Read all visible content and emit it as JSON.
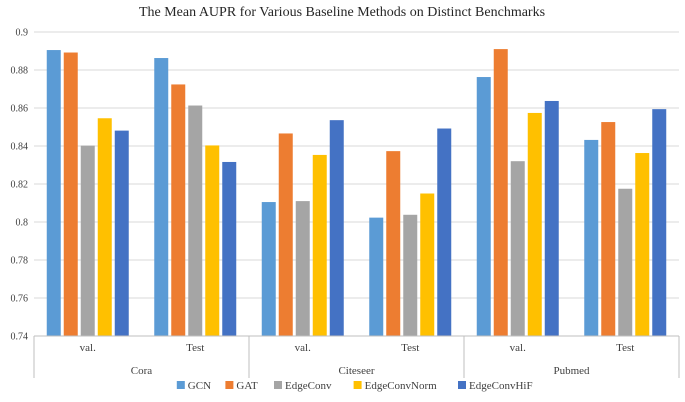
{
  "chart_data": {
    "type": "bar",
    "title": "The Mean AUPR for Various Baseline Methods on Distinct Benchmarks",
    "xlabel": "",
    "ylabel": "",
    "ylim": [
      0.74,
      0.9
    ],
    "yticks": [
      0.74,
      0.76,
      0.78,
      0.8,
      0.82,
      0.84,
      0.86,
      0.88,
      0.9
    ],
    "ytick_labels": [
      "0.74",
      "0.76",
      "0.78",
      "0.8",
      "0.82",
      "0.84",
      "0.86",
      "0.88",
      "0.9"
    ],
    "grid": true,
    "legend_position": "bottom",
    "groups": [
      {
        "name": "Cora",
        "categories": [
          "val.",
          "Test"
        ]
      },
      {
        "name": "Citeseer",
        "categories": [
          "val.",
          "Test"
        ]
      },
      {
        "name": "Pubmed",
        "categories": [
          "val.",
          "Test"
        ]
      }
    ],
    "series": [
      {
        "name": "GCN",
        "color": "#5b9bd5",
        "values": [
          0.8905,
          0.8863,
          0.8105,
          0.8023,
          0.8763,
          0.8432
        ]
      },
      {
        "name": "GAT",
        "color": "#ed7d31",
        "values": [
          0.8892,
          0.8724,
          0.8466,
          0.8373,
          0.891,
          0.8526
        ]
      },
      {
        "name": "EdgeConv",
        "color": "#a5a5a5",
        "values": [
          0.8402,
          0.8613,
          0.811,
          0.8038,
          0.832,
          0.8175
        ]
      },
      {
        "name": "EdgeConvNorm",
        "color": "#ffc000",
        "values": [
          0.8546,
          0.8403,
          0.8353,
          0.815,
          0.8574,
          0.8363
        ]
      },
      {
        "name": "EdgeConvHiF",
        "color": "#4472c4",
        "values": [
          0.8481,
          0.8316,
          0.8536,
          0.8492,
          0.8637,
          0.8594
        ]
      }
    ]
  }
}
